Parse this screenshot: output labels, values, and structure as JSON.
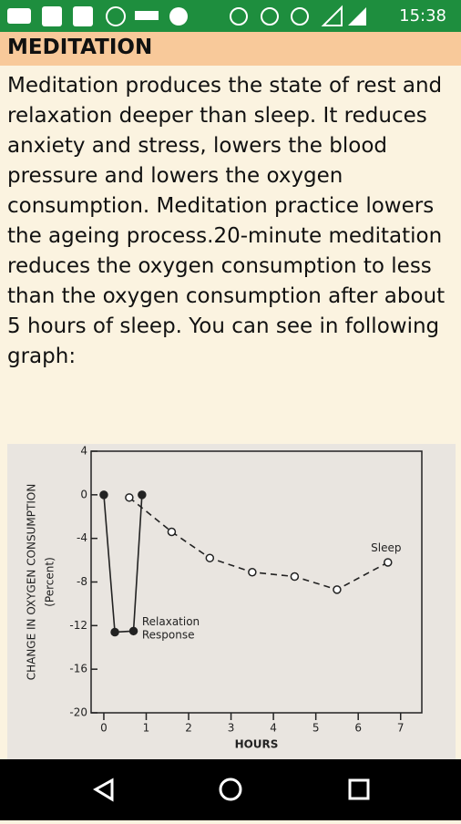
{
  "status_bar": {
    "time": "15:38"
  },
  "header": {
    "title": "MEDITATION"
  },
  "article": {
    "text": "Meditation produces the state of rest and relaxation deeper than sleep. It reduces anxiety and stress, lowers the blood pressure and lowers the oxygen consumption. Meditation practice lowers the ageing process.20-minute meditation reduces the oxygen consumption to less than the oxygen consumption after about 5 hours of sleep. You can see in following graph:"
  },
  "chart_data": {
    "type": "line",
    "y_label": [
      "CHANGE IN OXYGEN CONSUMPTION",
      "(Percent)"
    ],
    "x_label": "HOURS",
    "xlim": [
      -0.3,
      7.5
    ],
    "xticks": [
      0,
      1,
      2,
      3,
      4,
      5,
      6,
      7
    ],
    "ylim": [
      -20,
      4
    ],
    "yticks": [
      4,
      0,
      -4,
      -8,
      -12,
      -16,
      -20
    ],
    "series": [
      {
        "color": "#222222",
        "style": "solid",
        "marker": "filled",
        "x": [
          0,
          0.26,
          0.7,
          0.9
        ],
        "values": [
          0,
          -12.6,
          -12.5,
          0
        ]
      },
      {
        "color": "#222222",
        "style": "dashed",
        "marker": "open",
        "x": [
          0.6,
          1.6,
          2.5,
          3.5,
          4.5,
          5.5,
          6.7
        ],
        "values": [
          -0.25,
          -3.4,
          -5.8,
          -7.1,
          -7.5,
          -8.7,
          -6.2
        ]
      }
    ],
    "annotations": [
      {
        "text": "Sleep",
        "x": 6.3,
        "y": -4.9
      },
      {
        "text": "Relaxation",
        "x": 0.9,
        "y": -11.7
      },
      {
        "text": "Response",
        "x": 0.9,
        "y": -12.9
      }
    ]
  }
}
